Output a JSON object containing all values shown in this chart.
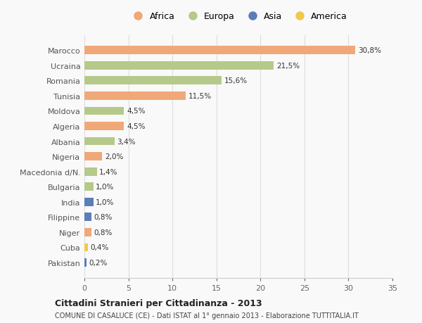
{
  "countries": [
    "Marocco",
    "Ucraina",
    "Romania",
    "Tunisia",
    "Moldova",
    "Algeria",
    "Albania",
    "Nigeria",
    "Macedonia d/N.",
    "Bulgaria",
    "India",
    "Filippine",
    "Niger",
    "Cuba",
    "Pakistan"
  ],
  "values": [
    30.8,
    21.5,
    15.6,
    11.5,
    4.5,
    4.5,
    3.4,
    2.0,
    1.4,
    1.0,
    1.0,
    0.8,
    0.8,
    0.4,
    0.2
  ],
  "labels": [
    "30,8%",
    "21,5%",
    "15,6%",
    "11,5%",
    "4,5%",
    "4,5%",
    "3,4%",
    "2,0%",
    "1,4%",
    "1,0%",
    "1,0%",
    "0,8%",
    "0,8%",
    "0,4%",
    "0,2%"
  ],
  "continents": [
    "Africa",
    "Europa",
    "Europa",
    "Africa",
    "Europa",
    "Africa",
    "Europa",
    "Africa",
    "Europa",
    "Europa",
    "Asia",
    "Asia",
    "Africa",
    "America",
    "Asia"
  ],
  "colors": {
    "Africa": "#F0A878",
    "Europa": "#B5C98A",
    "Asia": "#5B7DB8",
    "America": "#F0C84A"
  },
  "title": "Cittadini Stranieri per Cittadinanza - 2013",
  "subtitle": "COMUNE DI CASALUCE (CE) - Dati ISTAT al 1° gennaio 2013 - Elaborazione TUTTITALIA.IT",
  "xlim": [
    0,
    35
  ],
  "xticks": [
    0,
    5,
    10,
    15,
    20,
    25,
    30,
    35
  ],
  "background_color": "#f9f9f9",
  "grid_color": "#dddddd",
  "bar_height": 0.55,
  "legend_order": [
    "Africa",
    "Europa",
    "Asia",
    "America"
  ]
}
